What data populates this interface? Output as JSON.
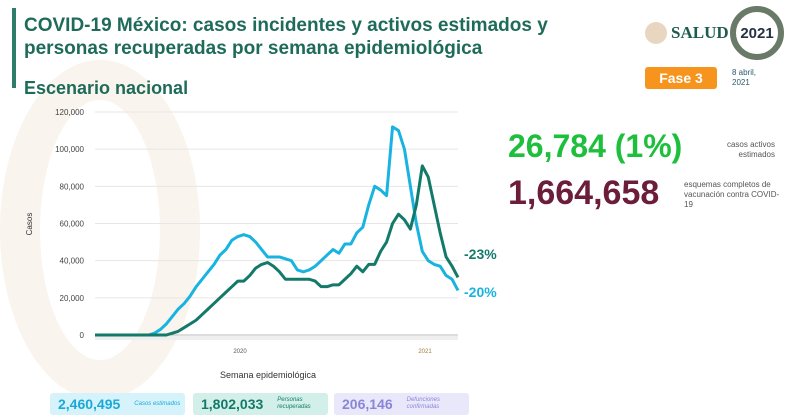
{
  "header": {
    "title": "COVID-19 México: casos incidentes y activos estimados y personas recuperadas por semana epidemiológica",
    "subtitle": "Escenario nacional",
    "logo_salud": "SALUD",
    "logo_2021": "2021",
    "fase": "Fase 3",
    "date": "8 abril, 2021"
  },
  "kpis": {
    "active_value": "26,784 (1%)",
    "active_label": "casos activos estimados",
    "vacc_value": "1,664,658",
    "vacc_label": "esquemas completos de vacunación contra COVID-19"
  },
  "summary": [
    {
      "value": "2,460,495",
      "label": "Casos estimados",
      "color": "#1aa9d6",
      "bg": "#d6f3fb"
    },
    {
      "value": "1,802,033",
      "label": "Personas recuperadas",
      "color": "#137a6a",
      "bg": "#d3efe9"
    },
    {
      "value": "206,146",
      "label": "Defunciones confirmadas",
      "color": "#8a86d6",
      "bg": "#e9e8fb"
    }
  ],
  "chart_data": {
    "type": "line",
    "xlabel": "Semana epidemiológica",
    "ylabel": "Casos",
    "ylim": [
      0,
      120000
    ],
    "yticks": [
      "0",
      "20,000",
      "40,000",
      "60,000",
      "80,000",
      "100,000",
      "120,000"
    ],
    "year_labels": [
      "2020",
      "2021"
    ],
    "series": [
      {
        "name": "Casos incidentes estimados",
        "color": "#19b3e0",
        "end_label": "-20%",
        "values": [
          0,
          0,
          0,
          0,
          0,
          0,
          0,
          0,
          0,
          0,
          1000,
          3000,
          6000,
          10000,
          14000,
          17000,
          21000,
          26000,
          30000,
          34000,
          38000,
          43000,
          46000,
          51000,
          53000,
          54000,
          53000,
          50000,
          46000,
          42000,
          42000,
          42000,
          41000,
          40000,
          35000,
          34000,
          35000,
          37000,
          40000,
          43000,
          46000,
          44000,
          49000,
          49000,
          55000,
          58000,
          70000,
          80000,
          78000,
          75000,
          112000,
          110000,
          100000,
          80000,
          60000,
          45000,
          40000,
          38000,
          37000,
          32000,
          30000,
          24000
        ]
      },
      {
        "name": "Casos activos estimados",
        "color": "#137a6a",
        "end_label": "-23%",
        "values": [
          0,
          0,
          0,
          0,
          0,
          0,
          0,
          0,
          0,
          0,
          0,
          0,
          0,
          1000,
          2000,
          4000,
          6000,
          8000,
          11000,
          14000,
          17000,
          20000,
          23000,
          26000,
          29000,
          29000,
          32000,
          36000,
          38000,
          39000,
          37000,
          34000,
          30000,
          30000,
          30000,
          30000,
          30000,
          29000,
          26000,
          26000,
          27000,
          27000,
          30000,
          33000,
          37000,
          34000,
          38000,
          38000,
          45000,
          50000,
          60000,
          65000,
          62000,
          57000,
          70000,
          91000,
          85000,
          70000,
          55000,
          42000,
          37000,
          31000
        ]
      }
    ]
  }
}
